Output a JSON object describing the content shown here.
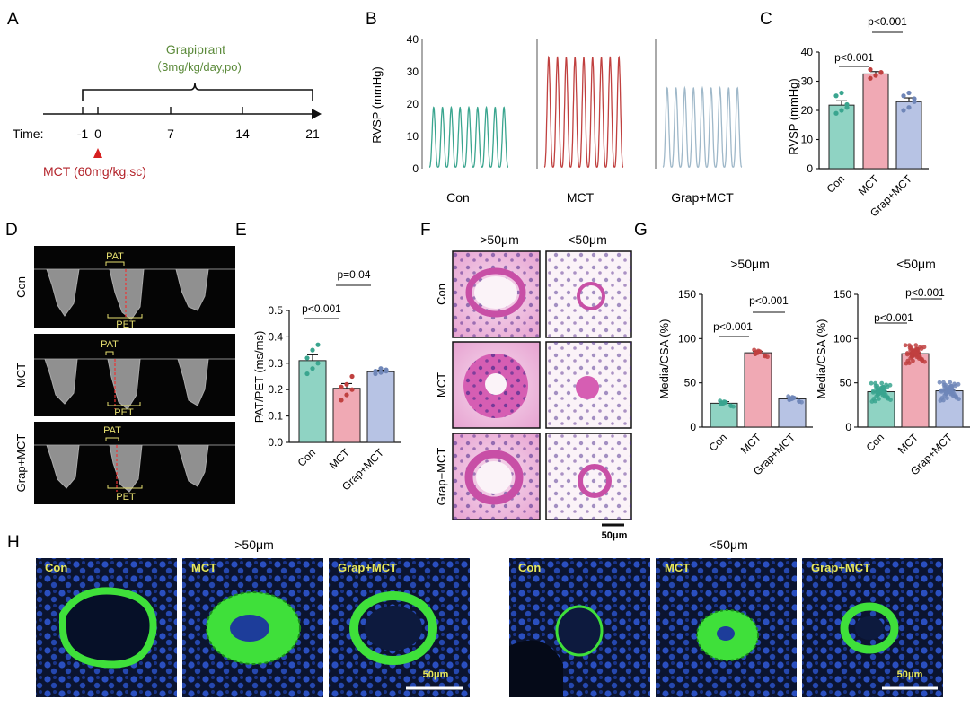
{
  "colors": {
    "con": "#3aa58f",
    "mct": "#c0403f",
    "grap": "#9fb8c9",
    "con_fill": "#8fd3c3",
    "mct_fill": "#f0a9b4",
    "grap_fill": "#b7c3e4",
    "grap_label": "#5b8a3a",
    "mct_label": "#b3232a",
    "he_pink": "#d978b8",
    "ihc_green": "#3fe03a",
    "ihc_blue": "#1d3d9a"
  },
  "panels": {
    "A": {
      "letter": "A",
      "drug": "Grapiprant",
      "dose": "（3mg/kg/day,po)",
      "time_label": "Time:",
      "ticks": [
        "-1",
        "0",
        "7",
        "14",
        "21"
      ],
      "mct_label": "MCT (60mg/kg,sc)"
    },
    "B": {
      "letter": "B",
      "ylabel": "RVSP (mmHg)",
      "yticks": [
        "0",
        "10",
        "20",
        "30",
        "40"
      ],
      "groups": [
        "Con",
        "MCT",
        "Grap+MCT"
      ]
    },
    "C": {
      "letter": "C",
      "ylabel": "RVSP (mmHg)",
      "yticks": [
        "0",
        "10",
        "20",
        "30",
        "40"
      ],
      "categories": [
        "Con",
        "MCT",
        "Grap+MCT"
      ],
      "p1": "p<0.001",
      "p2": "p<0.001"
    },
    "D": {
      "letter": "D",
      "rows": [
        "Con",
        "MCT",
        "Grap+MCT"
      ],
      "pat": "PAT",
      "pet": "PET"
    },
    "E": {
      "letter": "E",
      "ylabel": "PAT/PET (ms/ms)",
      "yticks": [
        "0.0",
        "0.1",
        "0.2",
        "0.3",
        "0.4",
        "0.5"
      ],
      "categories": [
        "Con",
        "MCT",
        "Grap+MCT"
      ],
      "p1": "p<0.001",
      "p2": "p=0.04"
    },
    "F": {
      "letter": "F",
      "cols": [
        ">50μm",
        "<50μm"
      ],
      "rows": [
        "Con",
        "MCT",
        "Grap+MCT"
      ],
      "scale": "50μm"
    },
    "G": {
      "letter": "G",
      "ylabel": "Media/CSA (%)",
      "yticks": [
        "0",
        "50",
        "100",
        "150"
      ],
      "categories": [
        "Con",
        "MCT",
        "Grap+MCT"
      ],
      "left_title": ">50μm",
      "right_title": "<50μm",
      "p_left_1": "p<0.001",
      "p_left_2": "p<0.001",
      "p_right_1": "p<0.001",
      "p_right_2": "p<0.001"
    },
    "H": {
      "letter": "H",
      "left_title": ">50μm",
      "right_title": "<50μm",
      "labels": [
        "Con",
        "MCT",
        "Grap+MCT"
      ],
      "scale": "50μm"
    }
  },
  "chart_data": [
    {
      "panel": "C",
      "type": "bar",
      "categories": [
        "Con",
        "MCT",
        "Grap+MCT"
      ],
      "values": [
        21.8,
        32.5,
        23.0
      ],
      "errors": [
        1.5,
        0.8,
        1.3
      ],
      "ylabel": "RVSP (mmHg)",
      "ylim": [
        0,
        40
      ],
      "points": [
        [
          19,
          20,
          22,
          25,
          26,
          21
        ],
        [
          31,
          32,
          33,
          34,
          32,
          33
        ],
        [
          20,
          21,
          23,
          25,
          26,
          24
        ]
      ]
    },
    {
      "panel": "E",
      "type": "bar",
      "categories": [
        "Con",
        "MCT",
        "Grap+MCT"
      ],
      "values": [
        0.31,
        0.205,
        0.268
      ],
      "errors": [
        0.022,
        0.018,
        0.006
      ],
      "ylabel": "PAT/PET (ms/ms)",
      "ylim": [
        0,
        0.5
      ],
      "points": [
        [
          0.26,
          0.28,
          0.3,
          0.32,
          0.35,
          0.37
        ],
        [
          0.16,
          0.18,
          0.2,
          0.21,
          0.22,
          0.25
        ],
        [
          0.26,
          0.265,
          0.27,
          0.27,
          0.28,
          0.275
        ]
      ]
    },
    {
      "panel": "G-left",
      "type": "bar",
      "title": ">50μm",
      "categories": [
        "Con",
        "MCT",
        "Grap+MCT"
      ],
      "values": [
        27,
        84,
        32
      ],
      "errors": [
        1.8,
        1.5,
        1.2
      ],
      "ylabel": "Media/CSA (%)",
      "ylim": [
        0,
        150
      ]
    },
    {
      "panel": "G-right",
      "type": "bar",
      "title": "<50μm",
      "categories": [
        "Con",
        "MCT",
        "Grap+MCT"
      ],
      "values": [
        40,
        83,
        41
      ],
      "errors": [
        0.9,
        0.9,
        0.9
      ],
      "ylabel": "Media/CSA (%)",
      "ylim": [
        0,
        150
      ]
    }
  ]
}
